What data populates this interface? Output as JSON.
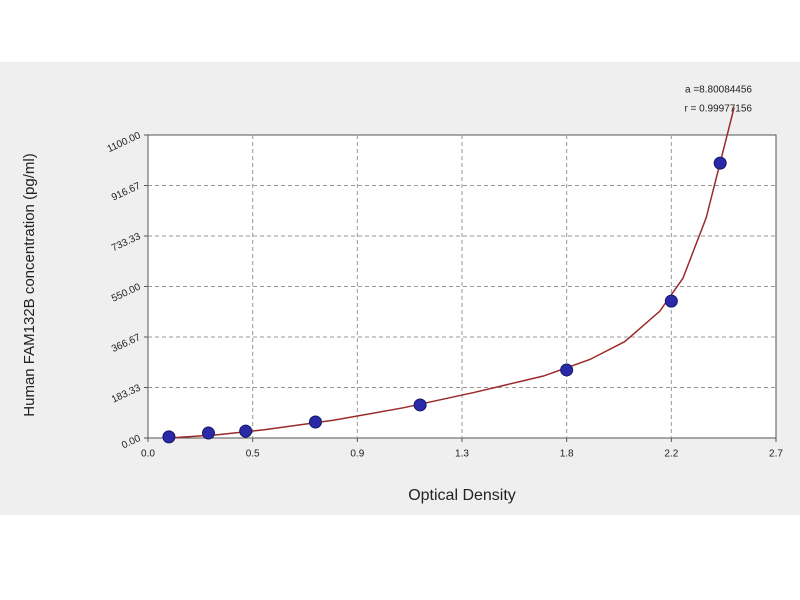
{
  "chart_data": {
    "type": "scatter",
    "x_label": "Optical Density",
    "y_label": "Human FAM132B concentration (pg/ml)",
    "annotations": [
      "a =8.80084456",
      "r = 0.99977156"
    ],
    "xlim": [
      0,
      2.7
    ],
    "xticks": [
      {
        "value": 0,
        "label": "0.0"
      },
      {
        "value": 0.45,
        "label": "0.5"
      },
      {
        "value": 0.9,
        "label": "0.9"
      },
      {
        "value": 1.35,
        "label": "1.3"
      },
      {
        "value": 1.8,
        "label": "1.8"
      },
      {
        "value": 2.25,
        "label": "2.2"
      },
      2.7
    ],
    "ylim": [
      0,
      1100
    ],
    "yticks": [
      {
        "value": 0,
        "label": "0.00"
      },
      183.33,
      366.67,
      {
        "value": 550,
        "label": "550.00"
      },
      733.33,
      916.67,
      {
        "value": 1100,
        "label": "1100.00"
      }
    ],
    "grid": true,
    "series": [
      {
        "type": "scatter",
        "color": "#2a2aa8",
        "x": [
          0.09,
          0.26,
          0.42,
          0.72,
          1.17,
          1.8,
          2.25,
          2.46
        ],
        "values": [
          4,
          18,
          25,
          58,
          120,
          247,
          497,
          998
        ]
      },
      {
        "type": "line",
        "color": "#9b2a2a",
        "x": [
          0.09,
          0.3,
          0.5,
          0.8,
          1.1,
          1.4,
          1.7,
          1.9,
          2.05,
          2.2,
          2.3,
          2.4,
          2.46,
          2.52
        ],
        "values": [
          0,
          12,
          30,
          65,
          110,
          165,
          225,
          285,
          350,
          460,
          580,
          800,
          1000,
          1200
        ]
      }
    ]
  }
}
